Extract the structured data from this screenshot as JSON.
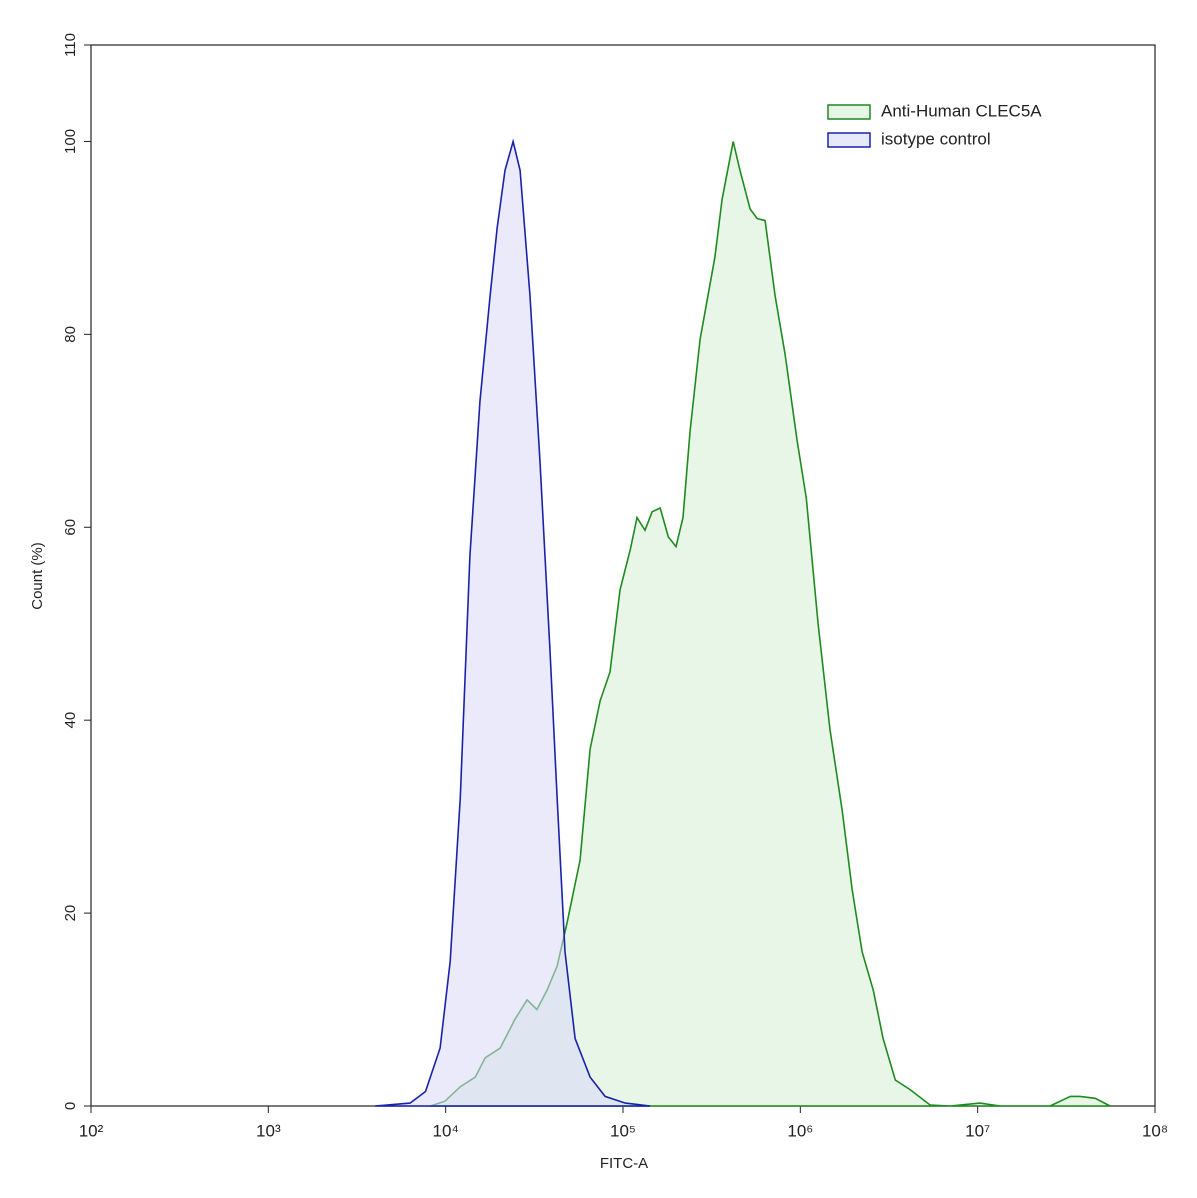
{
  "chart_data": {
    "type": "line",
    "xscale": "log",
    "fill_under": true,
    "xlabel": "FITC-A",
    "ylabel": "Count  (%)",
    "xlim": [
      100,
      100000000
    ],
    "xticks": [
      {
        "value": 100,
        "label": "10²"
      },
      {
        "value": 1000,
        "label": "10³"
      },
      {
        "value": 10000,
        "label": "10⁴"
      },
      {
        "value": 100000,
        "label": "10⁵"
      },
      {
        "value": 1000000,
        "label": "10⁶"
      },
      {
        "value": 10000000,
        "label": "10⁷"
      },
      {
        "value": 100000000,
        "label": "10⁸"
      }
    ],
    "ylim": [
      0,
      110
    ],
    "yticks": [
      0,
      20,
      40,
      60,
      80,
      100,
      110
    ],
    "legend": "top-right",
    "series": [
      {
        "name": "Anti-Human CLEC5A",
        "color": "#1f8a1f",
        "fill": "#d6eed6",
        "x": [
          8200,
          9900,
          12100,
          14700,
          16700,
          20300,
          24600,
          28800,
          32700,
          37300,
          42500,
          48400,
          57300,
          65200,
          74300,
          84500,
          96200,
          110000,
          120000,
          133000,
          146000,
          162000,
          180000,
          199000,
          218000,
          239000,
          272000,
          330000,
          362000,
          418000,
          457000,
          521000,
          571000,
          633000,
          721000,
          820000,
          959000,
          1080000,
          1260000,
          1470000,
          1720000,
          1960000,
          2230000,
          2580000,
          2930000,
          3430000,
          4160000,
          5390000,
          7000000,
          10300000,
          13400000,
          25600000,
          33300000,
          37800000,
          46000000,
          55800000
        ],
        "values": [
          0,
          0.5,
          2,
          3,
          5,
          6,
          9,
          11,
          10,
          12,
          14.5,
          19,
          25.5,
          37,
          42,
          45,
          53.5,
          57.7,
          61,
          59.7,
          61.6,
          62,
          59,
          58,
          61,
          70,
          79.5,
          88,
          94,
          100,
          97,
          93,
          92,
          91.8,
          84,
          78,
          69,
          63,
          50,
          39,
          30.7,
          22.4,
          16,
          12,
          7,
          2.7,
          1.7,
          0.1,
          0,
          0.3,
          0,
          0,
          1,
          1,
          0.8,
          0
        ]
      },
      {
        "name": "isotype control",
        "color": "#1a22a8",
        "fill": "#d8d8f8",
        "x": [
          4000,
          6300,
          7700,
          9300,
          10600,
          12100,
          13700,
          15600,
          17800,
          19500,
          21600,
          24000,
          26300,
          29900,
          34000,
          38800,
          42500,
          47100,
          53700,
          65200,
          79300,
          103000,
          142000
        ],
        "values": [
          0,
          0.3,
          1.5,
          6,
          15,
          32,
          57,
          73,
          84,
          91,
          97,
          100,
          97,
          84,
          67,
          47,
          32,
          16,
          7,
          3,
          1,
          0.3,
          0
        ]
      }
    ]
  }
}
